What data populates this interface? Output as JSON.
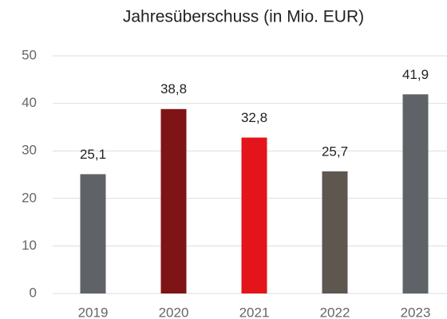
{
  "chart_data": {
    "type": "bar",
    "title": "Jahresüberschuss (in Mio. EUR)",
    "categories": [
      "2019",
      "2020",
      "2021",
      "2022",
      "2023"
    ],
    "values": [
      25.1,
      38.8,
      32.8,
      25.7,
      41.9
    ],
    "value_labels": [
      "25,1",
      "38,8",
      "32,8",
      "25,7",
      "41,9"
    ],
    "colors": [
      "#5f6368",
      "#7f1416",
      "#e3151a",
      "#5e5750",
      "#5f6368"
    ],
    "ylim": [
      0,
      50
    ],
    "yticks": [
      0,
      10,
      20,
      30,
      40,
      50
    ],
    "grid": true
  }
}
